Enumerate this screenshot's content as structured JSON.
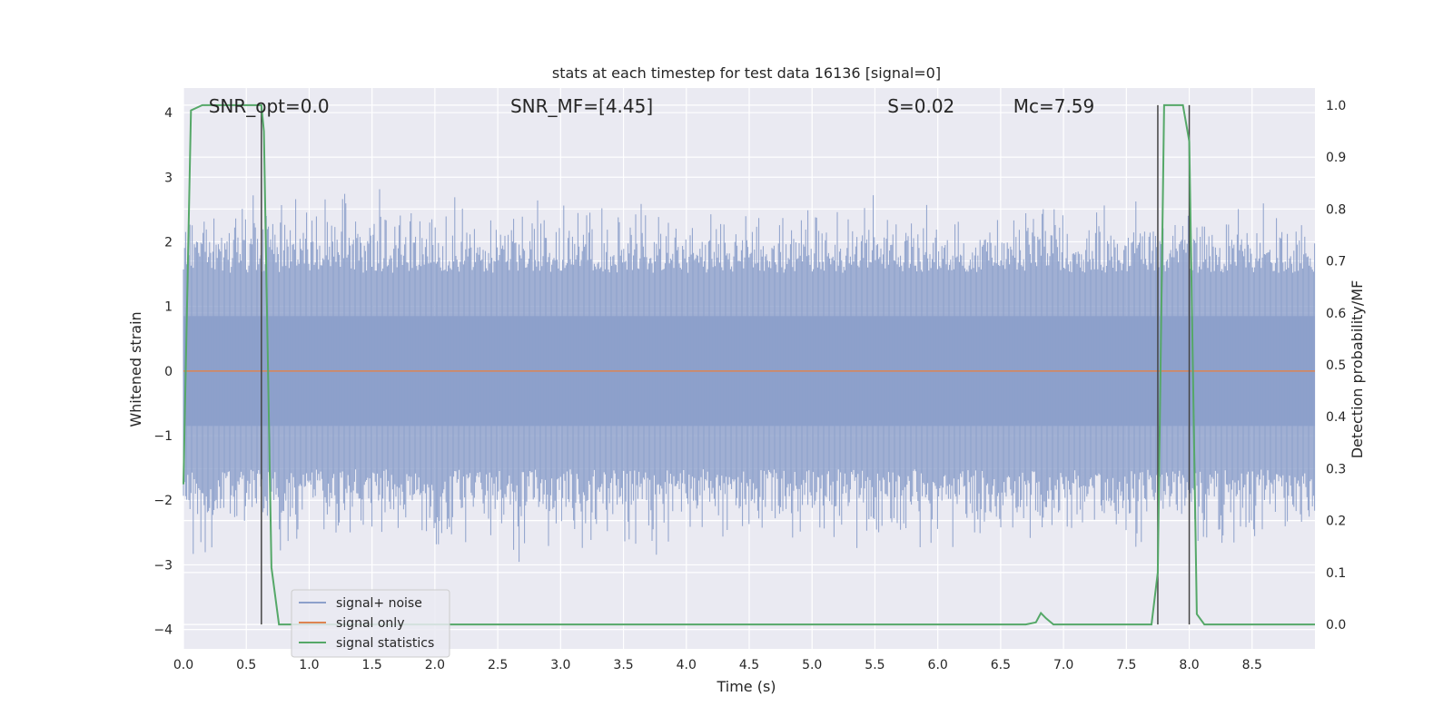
{
  "chart_data": {
    "type": "line",
    "title": "stats at each timestep for test data 16136 [signal=0]",
    "xlabel": "Time (s)",
    "ylabel": "Whitened strain",
    "ylabel_right": "Detection probability/MF",
    "xlim": [
      0.0,
      9.0
    ],
    "ylim": [
      -4.3,
      4.38
    ],
    "ylim_right": [
      -0.047,
      1.033
    ],
    "x_ticks": [
      "0.0",
      "0.5",
      "1.0",
      "1.5",
      "2.0",
      "2.5",
      "3.0",
      "3.5",
      "4.0",
      "4.5",
      "5.0",
      "5.5",
      "6.0",
      "6.5",
      "7.0",
      "7.5",
      "8.0",
      "8.5"
    ],
    "y_ticks": [
      "4",
      "3",
      "2",
      "1",
      "0",
      "−1",
      "−2",
      "−3",
      "−4"
    ],
    "y_ticks_right": [
      "1.0",
      "0.9",
      "0.8",
      "0.7",
      "0.6",
      "0.5",
      "0.4",
      "0.3",
      "0.2",
      "0.1",
      "0.0"
    ],
    "grid": true,
    "legend_position": "lower-left",
    "series": [
      {
        "name": "signal+ noise",
        "color": "#8da0cb",
        "kind": "noise",
        "envelope": {
          "typical_abs": 1.6,
          "peak_abs": 3.15
        }
      },
      {
        "name": "signal only",
        "color": "#dd8452",
        "kind": "constant",
        "value": 0.0
      },
      {
        "name": "signal statistics",
        "color": "#55a868",
        "axis": "right",
        "x": [
          0.0,
          0.06,
          0.15,
          0.62,
          0.64,
          0.7,
          0.76,
          6.7,
          6.78,
          6.82,
          6.86,
          6.92,
          7.7,
          7.75,
          7.8,
          7.9,
          7.95,
          8.0,
          8.06,
          8.12,
          9.0
        ],
        "y": [
          0.27,
          0.99,
          1.0,
          1.0,
          0.95,
          0.11,
          0.0,
          0.0,
          0.004,
          0.022,
          0.012,
          0.0,
          0.0,
          0.1,
          1.0,
          1.0,
          1.0,
          0.93,
          0.02,
          0.0,
          0.0
        ]
      }
    ],
    "vlines": [
      0.62,
      7.75,
      8.0
    ],
    "annotations": [
      {
        "text": "SNR_opt=0.0",
        "x": 0.2
      },
      {
        "text": "SNR_MF=[4.45]",
        "x": 2.6
      },
      {
        "text": "S=0.02",
        "x": 5.6
      },
      {
        "text": "Mc=7.59",
        "x": 6.6
      }
    ]
  },
  "legend_labels": [
    "signal+ noise",
    "signal only",
    "signal statistics"
  ]
}
